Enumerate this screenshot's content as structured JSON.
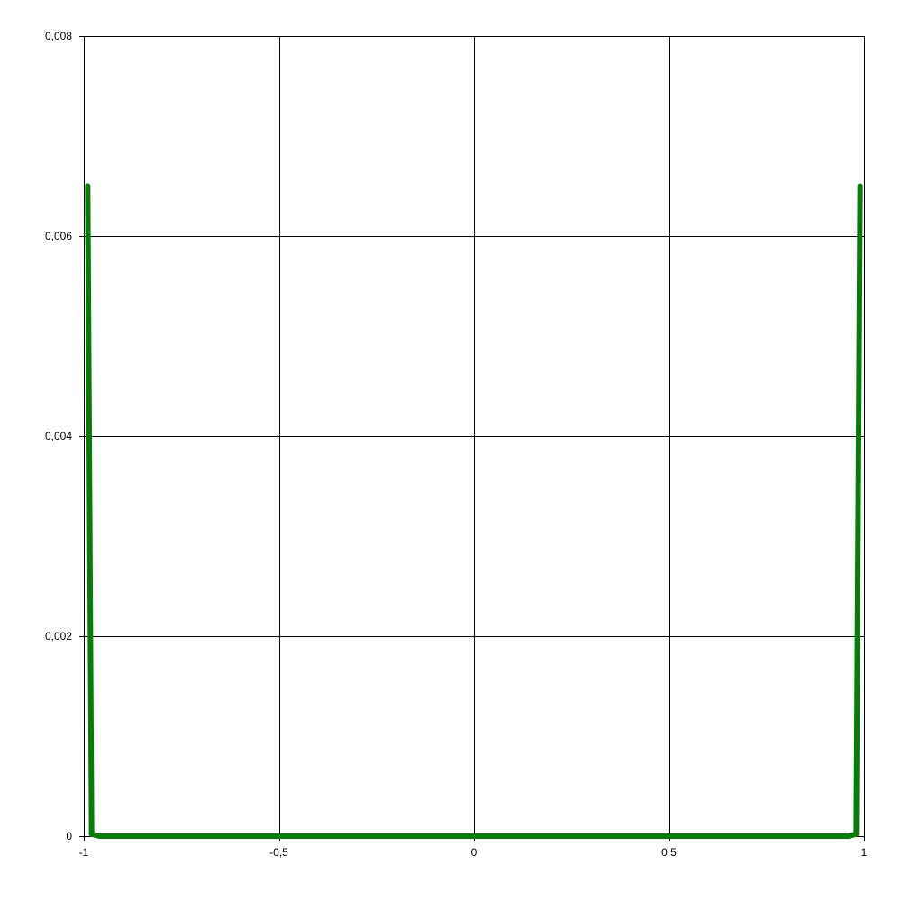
{
  "chart_data": {
    "type": "line",
    "title": "",
    "xlabel": "",
    "ylabel": "",
    "xlim": [
      -1,
      1
    ],
    "ylim": [
      0,
      0.008
    ],
    "grid": true,
    "x_ticks": [
      -1,
      -0.5,
      0,
      0.5,
      1
    ],
    "x_tick_labels": [
      "-1",
      "-0,5",
      "0",
      "0,5",
      "1"
    ],
    "y_ticks": [
      0,
      0.002,
      0.004,
      0.006,
      0.008
    ],
    "y_tick_labels": [
      "0",
      "0,002",
      "0,004",
      "0,006",
      "0,008"
    ],
    "series": [
      {
        "color": "#0a7a0a",
        "x": [
          -0.99,
          -0.98,
          -0.96,
          -0.9,
          -0.8,
          -0.7,
          -0.6,
          -0.5,
          -0.4,
          -0.3,
          -0.2,
          -0.1,
          0,
          0.1,
          0.2,
          0.3,
          0.4,
          0.5,
          0.6,
          0.7,
          0.8,
          0.9,
          0.96,
          0.98,
          0.99
        ],
        "y": [
          0.0065,
          2e-05,
          0,
          0,
          0,
          0,
          0,
          0,
          0,
          0,
          0,
          0,
          0,
          0,
          0,
          0,
          0,
          0,
          0,
          0,
          0,
          0,
          0,
          2e-05,
          0.0065
        ]
      }
    ]
  },
  "colors": {
    "background": "#ffffff",
    "grid": "#000000",
    "series": "#0a7a0a"
  }
}
